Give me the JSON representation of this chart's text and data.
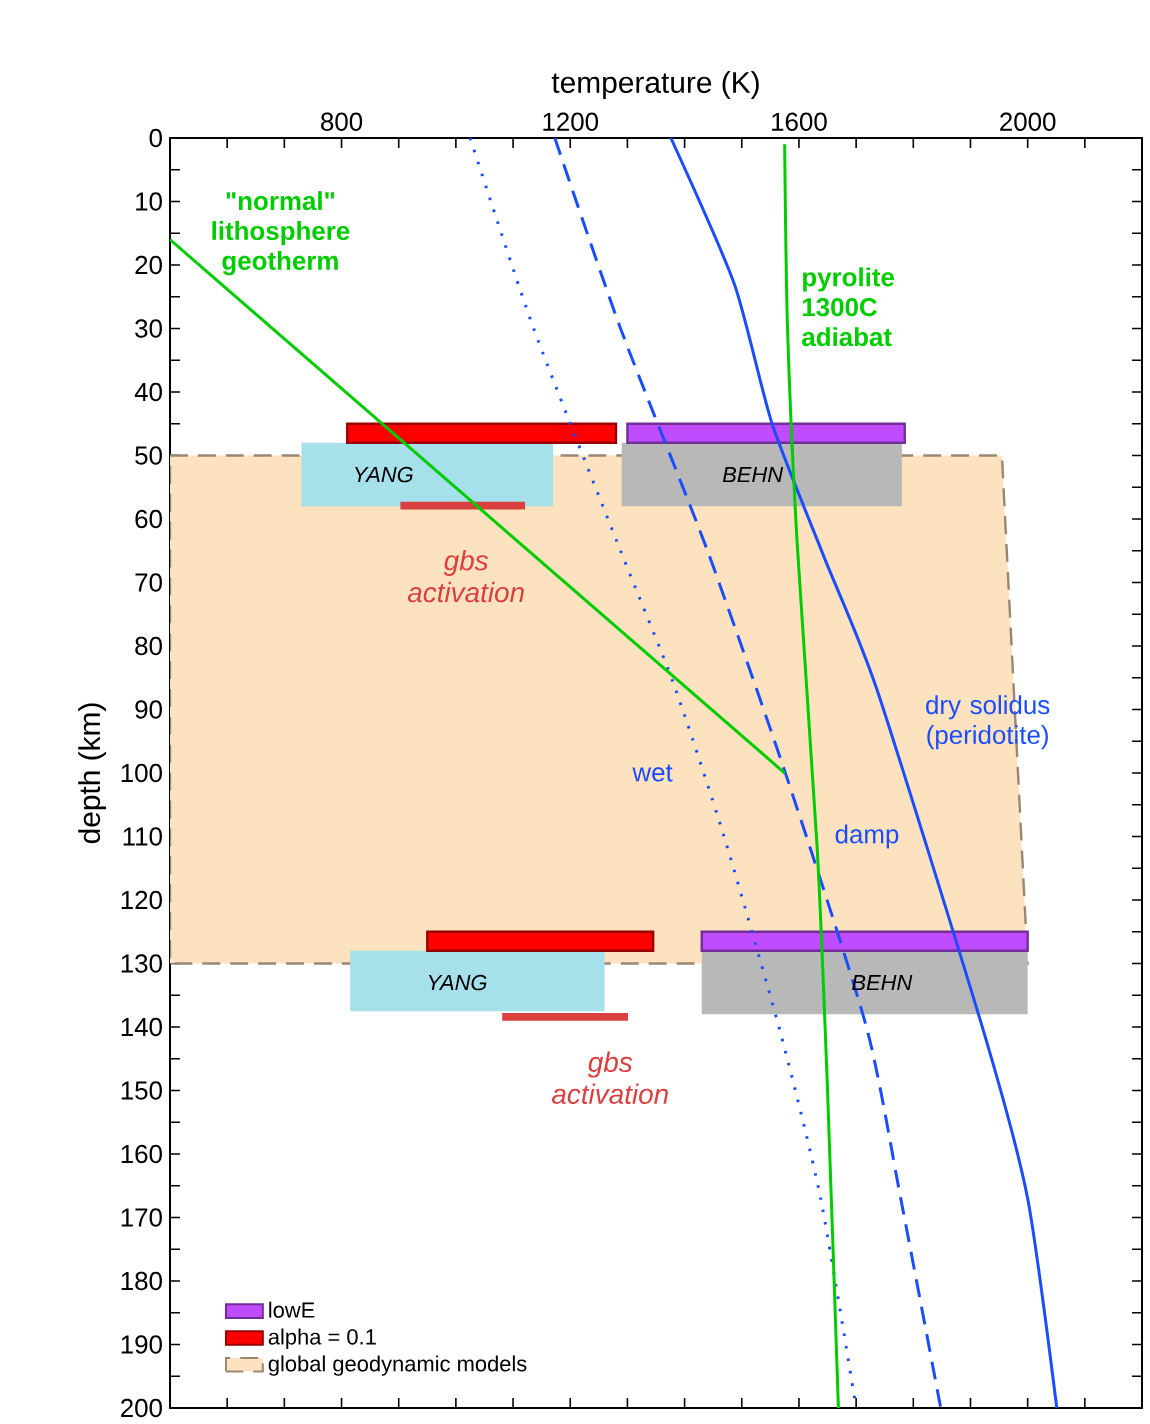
{
  "chart_data": {
    "type": "line",
    "xlabel": "temperature (K)",
    "ylabel": "depth (km)",
    "xlim": [
      500,
      2200
    ],
    "ylim": [
      200,
      0
    ],
    "xticks": [
      {
        "value": 500,
        "label": null
      },
      {
        "value": 600,
        "label": null
      },
      {
        "value": 700,
        "label": null
      },
      800,
      {
        "value": 900,
        "label": null
      },
      {
        "value": 1000,
        "label": null
      },
      {
        "value": 1100,
        "label": null
      },
      1200,
      {
        "value": 1300,
        "label": null
      },
      {
        "value": 1400,
        "label": null
      },
      {
        "value": 1500,
        "label": null
      },
      1600,
      {
        "value": 1700,
        "label": null
      },
      {
        "value": 1800,
        "label": null
      },
      {
        "value": 1900,
        "label": null
      },
      2000,
      {
        "value": 2100,
        "label": null
      },
      {
        "value": 2200,
        "label": null
      }
    ],
    "yticks": [
      0,
      {
        "value": 5,
        "label": null
      },
      10,
      {
        "value": 15,
        "label": null
      },
      20,
      {
        "value": 25,
        "label": null
      },
      30,
      {
        "value": 35,
        "label": null
      },
      40,
      {
        "value": 45,
        "label": null
      },
      50,
      {
        "value": 55,
        "label": null
      },
      60,
      {
        "value": 65,
        "label": null
      },
      70,
      {
        "value": 75,
        "label": null
      },
      80,
      {
        "value": 85,
        "label": null
      },
      90,
      {
        "value": 95,
        "label": null
      },
      100,
      {
        "value": 105,
        "label": null
      },
      110,
      {
        "value": 115,
        "label": null
      },
      120,
      {
        "value": 125,
        "label": null
      },
      130,
      {
        "value": 135,
        "label": null
      },
      140,
      {
        "value": 145,
        "label": null
      },
      150,
      {
        "value": 155,
        "label": null
      },
      160,
      {
        "value": 165,
        "label": null
      },
      170,
      {
        "value": 175,
        "label": null
      },
      180,
      {
        "value": 185,
        "label": null
      },
      190,
      {
        "value": 195,
        "label": null
      },
      200
    ],
    "grid": false,
    "legend": "bottom left",
    "marker": "none",
    "series": [
      {
        "name": "lowE",
        "type": "area",
        "color": "#bf4dff",
        "line_style": "solid",
        "x": [
          1300,
          1785,
          1785,
          1300,
          null,
          1430,
          2000,
          2000,
          1430
        ],
        "values": [
          45,
          45,
          48,
          48,
          null,
          125,
          125,
          128,
          128
        ]
      },
      {
        "name": "alpha = 0.1",
        "type": "area",
        "color": "#ff0000",
        "line_style": "solid",
        "x": [
          810,
          1280,
          1280,
          810,
          null,
          950,
          1345,
          1345,
          950
        ],
        "values": [
          45,
          45,
          48,
          48,
          null,
          125,
          125,
          128,
          128
        ]
      },
      {
        "type": "area",
        "color": "#d94040",
        "x": [
          903,
          1121,
          1121,
          903,
          null,
          1081,
          1301,
          1301,
          1081
        ],
        "values": [
          57.3,
          57.3,
          58.5,
          58.5,
          null,
          137.8,
          137.8,
          139,
          139
        ]
      },
      {
        "type": "area",
        "color": "#b8b8b8",
        "x": [
          1290,
          1780,
          1780,
          1290,
          null,
          1430,
          2000,
          2000,
          1430
        ],
        "values": [
          48,
          48,
          58,
          58,
          null,
          128,
          128,
          138,
          138
        ]
      },
      {
        "type": "area",
        "color": "#a6e0ea",
        "x": [
          730,
          1170,
          1170,
          730,
          null,
          815,
          1260,
          1260,
          815
        ],
        "values": [
          48,
          48,
          58,
          58,
          null,
          128,
          128,
          137.5,
          137.5
        ]
      },
      {
        "name": "global geodynamic models",
        "type": "area",
        "color": "#fde2bf",
        "line_style": "dashed",
        "x": [
          500,
          1955,
          2000,
          500
        ],
        "values": [
          50,
          50,
          130,
          130
        ]
      },
      {
        "color": "#1a4dff",
        "line_style": "dotted",
        "x": [
          1025,
          1136,
          1288,
          1381,
          1469,
          1568,
          1638,
          1700
        ],
        "values": [
          0,
          30,
          65,
          86,
          110,
          141,
          167,
          200
        ]
      },
      {
        "color": "#1a4dff",
        "line_style": "dashed",
        "x": [
          1173,
          1288,
          1440,
          1580,
          1718,
          1778,
          1848
        ],
        "values": [
          0,
          30,
          65,
          101,
          140,
          167,
          200
        ]
      },
      {
        "color": "#1a4dff",
        "line_style": "solid",
        "x": [
          1376,
          1487,
          1553,
          1644,
          1737,
          1924,
          2000,
          2051
        ],
        "values": [
          0,
          23,
          45,
          66,
          87,
          141,
          167,
          200
        ]
      },
      {
        "color": "#00cc00",
        "line_style": "solid",
        "x": [
          1575,
          1580,
          1597,
          1632,
          1650,
          1669
        ],
        "values": [
          1,
          30,
          64,
          112,
          150,
          200
        ]
      },
      {
        "color": "#00cc00",
        "line_style": "solid",
        "x": [
          500,
          1575
        ],
        "values": [
          16,
          100
        ]
      }
    ],
    "annotations": [
      "\"normal\" lithosphere geotherm",
      "pyrolite 1300C adiabat",
      "YANG",
      "BEHN",
      "YANG",
      "BEHN",
      "gbs activation",
      "gbs activation",
      "wet",
      "damp",
      "dry solidus (peridotite)"
    ]
  }
}
